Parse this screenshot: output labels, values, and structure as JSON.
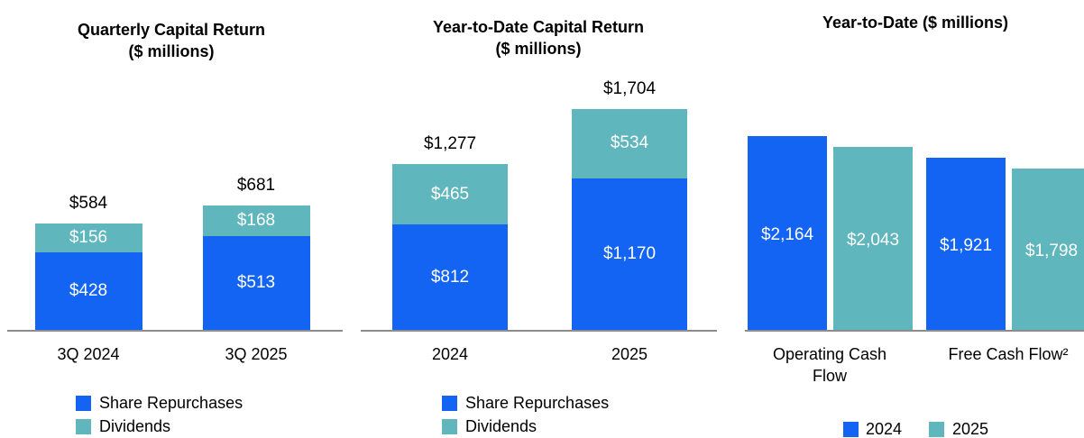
{
  "chart_data": [
    {
      "type": "stacked_bar",
      "title": "Quarterly Capital Return",
      "subtitle": "($ millions)",
      "categories": [
        "3Q 2024",
        "3Q 2025"
      ],
      "series": [
        {
          "name": "Share Repurchases",
          "color": "#1464f4",
          "values": [
            428,
            513
          ],
          "value_labels": [
            "$428",
            "$513"
          ]
        },
        {
          "name": "Dividends",
          "color": "#5fb6bc",
          "values": [
            156,
            168
          ],
          "value_labels": [
            "$156",
            "$168"
          ]
        }
      ],
      "totals": [
        584,
        681
      ],
      "total_labels": [
        "$584",
        "$681"
      ],
      "legend": "bottom-left"
    },
    {
      "type": "stacked_bar",
      "title": "Year-to-Date Capital Return",
      "subtitle": "($ millions)",
      "categories": [
        "2024",
        "2025"
      ],
      "series": [
        {
          "name": "Share Repurchases",
          "color": "#1464f4",
          "values": [
            812,
            1170
          ],
          "value_labels": [
            "$812",
            "$1,170"
          ]
        },
        {
          "name": "Dividends",
          "color": "#5fb6bc",
          "values": [
            465,
            534
          ],
          "value_labels": [
            "$465",
            "$534"
          ]
        }
      ],
      "totals": [
        1277,
        1704
      ],
      "total_labels": [
        "$1,277",
        "$1,704"
      ],
      "legend": "bottom-left"
    },
    {
      "type": "grouped_bar",
      "title": "Year-to-Date ($ millions)",
      "categories": [
        "Operating Cash Flow",
        "Free Cash Flow²"
      ],
      "series": [
        {
          "name": "2024",
          "color": "#1464f4",
          "values": [
            2164,
            1921
          ],
          "value_labels": [
            "$2,164",
            "$1,921"
          ]
        },
        {
          "name": "2025",
          "color": "#5fb6bc",
          "values": [
            2043,
            1798
          ],
          "value_labels": [
            "$2,043",
            "$1,798"
          ]
        }
      ],
      "legend": "bottom"
    }
  ]
}
